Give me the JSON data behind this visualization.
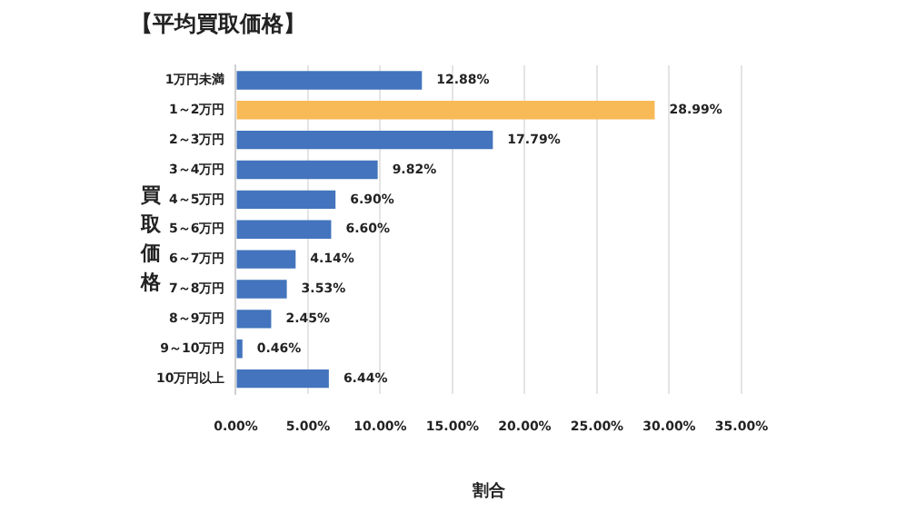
{
  "chart_data": {
    "type": "bar",
    "orientation": "horizontal",
    "title": "【平均買取価格】",
    "ylabel": "買取価格",
    "xlabel": "割合",
    "categories": [
      "1万円未満",
      "1～2万円",
      "2～3万円",
      "3～4万円",
      "4～5万円",
      "5～6万円",
      "6～7万円",
      "7～8万円",
      "8～9万円",
      "9～10万円",
      "10万円以上"
    ],
    "values": [
      12.88,
      28.99,
      17.79,
      9.82,
      6.9,
      6.6,
      4.14,
      3.53,
      2.45,
      0.46,
      6.44
    ],
    "colors": [
      "#4374bd",
      "#f8b957",
      "#4374bd",
      "#4374bd",
      "#4374bd",
      "#4374bd",
      "#4374bd",
      "#4374bd",
      "#4374bd",
      "#4374bd",
      "#4374bd"
    ],
    "value_labels": [
      "12.88%",
      "28.99%",
      "17.79%",
      "9.82%",
      "6.90%",
      "6.60%",
      "4.14%",
      "3.53%",
      "2.45%",
      "0.46%",
      "6.44%"
    ],
    "xlim": [
      0,
      35
    ],
    "xticks": [
      {
        "value": 0,
        "label": "0.00%"
      },
      {
        "value": 5,
        "label": "5.00%"
      },
      {
        "value": 10,
        "label": "10.00%"
      },
      {
        "value": 15,
        "label": "15.00%"
      },
      {
        "value": 20,
        "label": "20.00%"
      },
      {
        "value": 25,
        "label": "25.00%"
      },
      {
        "value": 30,
        "label": "30.00%"
      },
      {
        "value": 35,
        "label": "35.00%"
      }
    ],
    "grid": "x",
    "legend": false
  }
}
